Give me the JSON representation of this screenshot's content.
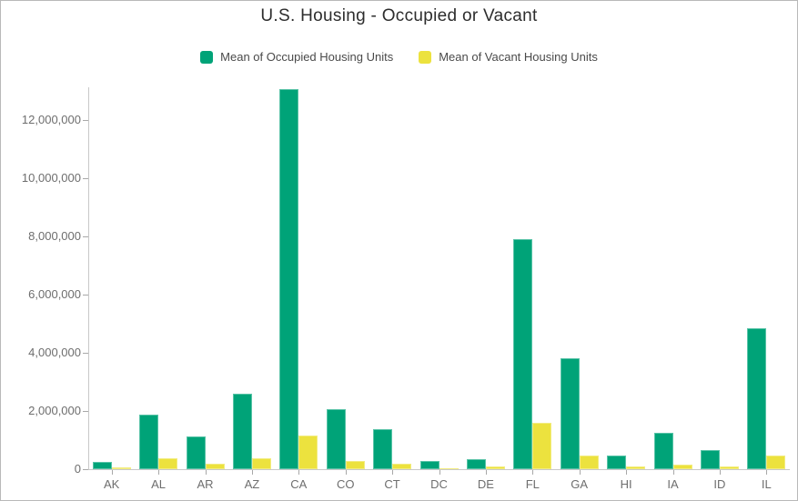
{
  "chart_data": {
    "type": "bar",
    "title": "U.S. Housing - Occupied or Vacant",
    "categories": [
      "AK",
      "AL",
      "AR",
      "AZ",
      "CA",
      "CO",
      "CT",
      "DC",
      "DE",
      "FL",
      "GA",
      "HI",
      "IA",
      "ID",
      "IL"
    ],
    "series": [
      {
        "name": "Mean of Occupied Housing Units",
        "color": "#00a378",
        "values": [
          250000,
          1870000,
          1140000,
          2590000,
          13050000,
          2070000,
          1390000,
          280000,
          345000,
          7900000,
          3810000,
          470000,
          1260000,
          650000,
          4850000
        ]
      },
      {
        "name": "Mean of Vacant Housing Units",
        "color": "#ece23e",
        "values": [
          75000,
          380000,
          190000,
          390000,
          1170000,
          280000,
          195000,
          40000,
          90000,
          1580000,
          480000,
          100000,
          160000,
          105000,
          480000
        ]
      }
    ],
    "xlabel": "",
    "ylabel": "",
    "y_axis": {
      "min": 0,
      "max": 13125000,
      "tick_interval": 2000000,
      "tick_labels": [
        "0",
        "2,000,000",
        "4,000,000",
        "6,000,000",
        "8,000,000",
        "10,000,000",
        "12,000,000"
      ]
    },
    "grid": false,
    "legend_position": "top"
  },
  "colors": {
    "occupied": "#00a378",
    "vacant": "#ece23e",
    "title_text": "#2d2d2d",
    "legend_text": "#4a4a4a",
    "axis_text": "#6e6e6e",
    "axis_line": "#c8c8c8"
  }
}
